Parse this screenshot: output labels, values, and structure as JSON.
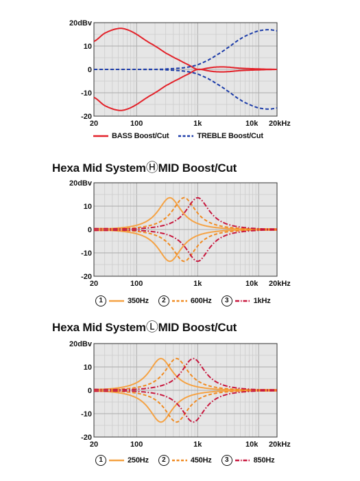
{
  "chart_data": [
    {
      "type": "line",
      "title": "",
      "x_scale": "log",
      "xlim": [
        20,
        20000
      ],
      "ylim": [
        -20,
        20
      ],
      "y_unit": "dBv",
      "yticks": [
        "20dBv",
        "10",
        "0",
        "-10",
        "-20"
      ],
      "xticks": [
        "20",
        "100",
        "1k",
        "10k",
        "20kHz"
      ],
      "grid": true,
      "legend_position": "bottom",
      "series": [
        {
          "name": "BASS Boost/Cut",
          "color": "#e32129",
          "style": "solid",
          "x": [
            20,
            30,
            50,
            70,
            100,
            150,
            200,
            300,
            500,
            700,
            1000,
            1500,
            2000,
            3000,
            5000,
            10000,
            20000
          ],
          "y_boost": [
            12,
            15.5,
            17.5,
            17,
            15,
            12,
            10,
            7,
            4,
            2,
            0,
            0.6,
            1,
            1,
            0.5,
            0.2,
            0
          ],
          "y_cut": [
            -12,
            -15.5,
            -17.5,
            -17,
            -15,
            -12,
            -10,
            -7,
            -4,
            -2,
            0,
            -0.6,
            -1,
            -1,
            -0.5,
            -0.2,
            0
          ]
        },
        {
          "name": "TREBLE Boost/Cut",
          "color": "#1a3aa8",
          "style": "dashed",
          "x": [
            20,
            100,
            200,
            500,
            700,
            1000,
            1500,
            2000,
            3000,
            5000,
            7000,
            10000,
            15000,
            20000
          ],
          "y_boost": [
            0,
            0,
            0,
            0.5,
            1,
            2,
            4,
            6,
            9,
            13,
            15,
            16.5,
            17,
            16.5
          ],
          "y_cut": [
            0,
            0,
            0,
            -0.5,
            -1,
            -2,
            -4,
            -6,
            -9,
            -13,
            -15,
            -16.5,
            -17,
            -16.5
          ]
        }
      ]
    },
    {
      "type": "line",
      "title": "Hexa Mid System",
      "title_mark": "Ⓗ",
      "title_suffix": "MID Boost/Cut",
      "x_scale": "log",
      "xlim": [
        20,
        20000
      ],
      "ylim": [
        -20,
        20
      ],
      "y_unit": "dBv",
      "yticks": [
        "20dBv",
        "10",
        "0",
        "-10",
        "-20"
      ],
      "xticks": [
        "20",
        "100",
        "1k",
        "10k",
        "20kHz"
      ],
      "grid": true,
      "legend_position": "bottom",
      "series": [
        {
          "number": "1",
          "name": "350Hz",
          "center_hz": 350,
          "peak_db": 14,
          "color": "#f5a243",
          "style": "solid"
        },
        {
          "number": "2",
          "name": "600Hz",
          "center_hz": 600,
          "peak_db": 14,
          "color": "#f08a20",
          "style": "dashed"
        },
        {
          "number": "3",
          "name": "1kHz",
          "center_hz": 1000,
          "peak_db": 14,
          "color": "#c8173d",
          "style": "dashdot"
        }
      ]
    },
    {
      "type": "line",
      "title": "Hexa Mid System",
      "title_mark": "Ⓛ",
      "title_suffix": "MID Boost/Cut",
      "x_scale": "log",
      "xlim": [
        20,
        20000
      ],
      "ylim": [
        -20,
        20
      ],
      "y_unit": "dBv",
      "yticks": [
        "20dBv",
        "10",
        "0",
        "-10",
        "-20"
      ],
      "xticks": [
        "20",
        "100",
        "1k",
        "10k",
        "20kHz"
      ],
      "grid": true,
      "legend_position": "bottom",
      "series": [
        {
          "number": "1",
          "name": "250Hz",
          "center_hz": 250,
          "peak_db": 14,
          "color": "#f5a243",
          "style": "solid"
        },
        {
          "number": "2",
          "name": "450Hz",
          "center_hz": 450,
          "peak_db": 14,
          "color": "#f08a20",
          "style": "dashed"
        },
        {
          "number": "3",
          "name": "850Hz",
          "center_hz": 850,
          "peak_db": 14,
          "color": "#c8173d",
          "style": "dashdot"
        }
      ]
    }
  ]
}
